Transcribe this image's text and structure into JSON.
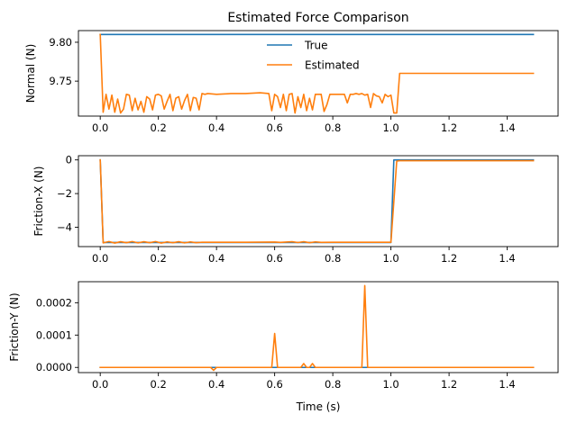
{
  "chart_data": [
    {
      "type": "line",
      "title": "Estimated Force Comparison",
      "xlabel": "",
      "ylabel": "Normal (N)",
      "xlim": [
        -0.075,
        1.575
      ],
      "ylim": [
        9.705,
        9.815
      ],
      "xticks": [
        0.0,
        0.2,
        0.4,
        0.6,
        0.8,
        1.0,
        1.2,
        1.4
      ],
      "xtick_labels": [
        "0.0",
        "0.2",
        "0.4",
        "0.6",
        "0.8",
        "1.0",
        "1.2",
        "1.4"
      ],
      "yticks": [
        9.75,
        9.8
      ],
      "ytick_labels": [
        "9.75",
        "9.80"
      ],
      "legend": {
        "position": "upper-center",
        "entries": [
          "True",
          "Estimated"
        ]
      },
      "series": [
        {
          "name": "True",
          "color": "#1f77b4",
          "x": [
            0.0,
            1.49
          ],
          "y": [
            9.81,
            9.81
          ]
        },
        {
          "name": "Estimated",
          "color": "#ff7f0e",
          "x": [
            0.0,
            0.01,
            0.02,
            0.03,
            0.04,
            0.05,
            0.06,
            0.07,
            0.08,
            0.09,
            0.1,
            0.11,
            0.12,
            0.13,
            0.14,
            0.15,
            0.16,
            0.17,
            0.18,
            0.19,
            0.2,
            0.21,
            0.22,
            0.23,
            0.24,
            0.25,
            0.26,
            0.27,
            0.28,
            0.29,
            0.3,
            0.31,
            0.32,
            0.33,
            0.34,
            0.35,
            0.36,
            0.37,
            0.4,
            0.45,
            0.5,
            0.55,
            0.58,
            0.59,
            0.6,
            0.61,
            0.62,
            0.63,
            0.64,
            0.65,
            0.66,
            0.67,
            0.68,
            0.69,
            0.7,
            0.71,
            0.72,
            0.73,
            0.74,
            0.75,
            0.76,
            0.77,
            0.78,
            0.79,
            0.8,
            0.81,
            0.82,
            0.83,
            0.84,
            0.85,
            0.86,
            0.87,
            0.88,
            0.89,
            0.9,
            0.91,
            0.92,
            0.93,
            0.94,
            0.95,
            0.96,
            0.97,
            0.98,
            0.99,
            1.0,
            1.01,
            1.02,
            1.03,
            1.49
          ],
          "y": [
            9.81,
            9.71,
            9.733,
            9.714,
            9.732,
            9.71,
            9.727,
            9.709,
            9.714,
            9.733,
            9.732,
            9.712,
            9.728,
            9.713,
            9.724,
            9.71,
            9.73,
            9.727,
            9.713,
            9.732,
            9.733,
            9.731,
            9.714,
            9.724,
            9.733,
            9.712,
            9.728,
            9.73,
            9.714,
            9.725,
            9.733,
            9.712,
            9.729,
            9.728,
            9.713,
            9.734,
            9.733,
            9.734,
            9.733,
            9.734,
            9.734,
            9.735,
            9.734,
            9.712,
            9.733,
            9.73,
            9.716,
            9.733,
            9.712,
            9.733,
            9.734,
            9.709,
            9.73,
            9.716,
            9.733,
            9.712,
            9.728,
            9.713,
            9.733,
            9.733,
            9.733,
            9.711,
            9.72,
            9.733,
            9.733,
            9.733,
            9.733,
            9.733,
            9.733,
            9.722,
            9.733,
            9.733,
            9.734,
            9.733,
            9.734,
            9.732,
            9.733,
            9.716,
            9.734,
            9.731,
            9.73,
            9.722,
            9.733,
            9.73,
            9.732,
            9.709,
            9.709,
            9.76,
            9.76
          ]
        }
      ]
    },
    {
      "type": "line",
      "title": "",
      "xlabel": "",
      "ylabel": "Friction-X (N)",
      "xlim": [
        -0.075,
        1.575
      ],
      "ylim": [
        -5.15,
        0.25
      ],
      "xticks": [
        0.0,
        0.2,
        0.4,
        0.6,
        0.8,
        1.0,
        1.2,
        1.4
      ],
      "xtick_labels": [
        "0.0",
        "0.2",
        "0.4",
        "0.6",
        "0.8",
        "1.0",
        "1.2",
        "1.4"
      ],
      "yticks": [
        0,
        -2,
        -4
      ],
      "ytick_labels": [
        "0",
        "−2",
        "−4"
      ],
      "series": [
        {
          "name": "True",
          "color": "#1f77b4",
          "x": [
            0.0,
            0.01,
            1.0,
            1.01,
            1.49
          ],
          "y": [
            0.0,
            -4.905,
            -4.905,
            0.0,
            0.0
          ]
        },
        {
          "name": "Estimated",
          "color": "#ff7f0e",
          "x": [
            0.0,
            0.01,
            0.03,
            0.05,
            0.07,
            0.09,
            0.11,
            0.13,
            0.15,
            0.17,
            0.19,
            0.21,
            0.23,
            0.25,
            0.27,
            0.29,
            0.31,
            0.33,
            0.35,
            0.4,
            0.5,
            0.6,
            0.62,
            0.66,
            0.68,
            0.7,
            0.72,
            0.74,
            0.76,
            0.8,
            0.85,
            0.9,
            0.95,
            1.0,
            1.02,
            1.03,
            1.49
          ],
          "y": [
            0.0,
            -4.93,
            -4.85,
            -4.94,
            -4.86,
            -4.92,
            -4.85,
            -4.93,
            -4.86,
            -4.92,
            -4.85,
            -4.94,
            -4.87,
            -4.92,
            -4.86,
            -4.93,
            -4.87,
            -4.92,
            -4.89,
            -4.89,
            -4.89,
            -4.88,
            -4.9,
            -4.86,
            -4.91,
            -4.86,
            -4.92,
            -4.87,
            -4.9,
            -4.89,
            -4.89,
            -4.89,
            -4.89,
            -4.89,
            -0.07,
            -0.05,
            -0.05
          ]
        }
      ]
    },
    {
      "type": "line",
      "title": "",
      "xlabel": "Time (s)",
      "ylabel": "Friction-Y (N)",
      "xlim": [
        -0.075,
        1.575
      ],
      "ylim": [
        -1.6e-05,
        0.000265
      ],
      "xticks": [
        0.0,
        0.2,
        0.4,
        0.6,
        0.8,
        1.0,
        1.2,
        1.4
      ],
      "xtick_labels": [
        "0.0",
        "0.2",
        "0.4",
        "0.6",
        "0.8",
        "1.0",
        "1.2",
        "1.4"
      ],
      "yticks": [
        0.0,
        0.0001,
        0.0002
      ],
      "ytick_labels": [
        "0.0000",
        "0.0001",
        "0.0002"
      ],
      "series": [
        {
          "name": "True",
          "color": "#1f77b4",
          "x": [
            0.0,
            1.49
          ],
          "y": [
            0.0,
            0.0
          ]
        },
        {
          "name": "Estimated",
          "color": "#ff7f0e",
          "x": [
            0.0,
            0.38,
            0.39,
            0.4,
            0.59,
            0.6,
            0.61,
            0.69,
            0.7,
            0.71,
            0.72,
            0.73,
            0.74,
            0.9,
            0.91,
            0.92,
            1.49
          ],
          "y": [
            0.0,
            0.0,
            -9e-06,
            0.0,
            0.0,
            0.000105,
            0.0,
            0.0,
            1.2e-05,
            0.0,
            0.0,
            1.2e-05,
            0.0,
            0.0,
            0.000253,
            0.0,
            0.0
          ]
        }
      ]
    }
  ]
}
